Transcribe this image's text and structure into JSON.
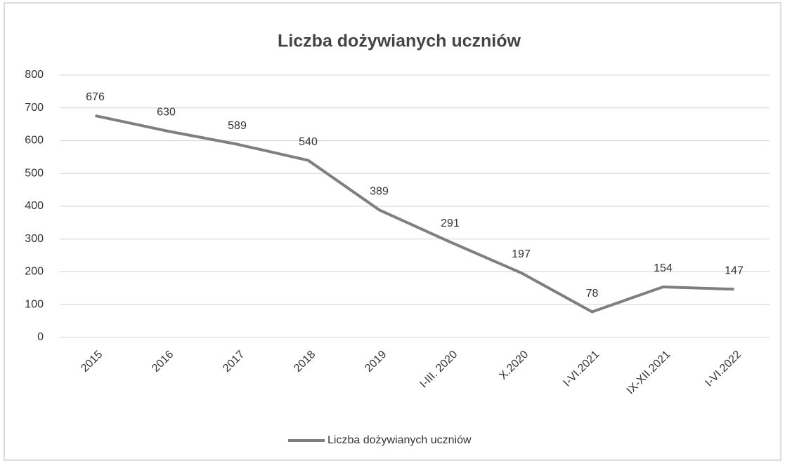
{
  "chart_data": {
    "type": "line",
    "title": "Liczba dożywianych uczniów",
    "categories": [
      "2015",
      "2016",
      "2017",
      "2018",
      "2019",
      "I-III. 2020",
      "X.2020",
      "I-VI.2021",
      "IX-XII.2021",
      "I-VI.2022"
    ],
    "series": [
      {
        "name": "Liczba dożywianych uczniów",
        "color": "#7f7f7f",
        "values": [
          676,
          630,
          589,
          540,
          389,
          291,
          197,
          78,
          154,
          147
        ]
      }
    ],
    "ylim": [
      0,
      800
    ],
    "yticks": [
      0,
      100,
      200,
      300,
      400,
      500,
      600,
      700,
      800
    ],
    "grid": true,
    "legend": "bottom"
  }
}
